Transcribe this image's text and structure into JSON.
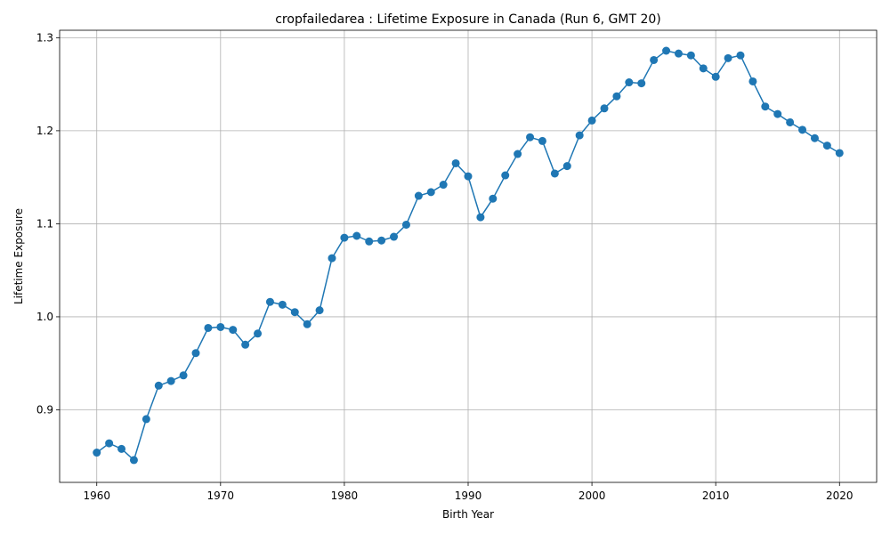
{
  "chart_data": {
    "type": "line",
    "title": "cropfailedarea : Lifetime Exposure in Canada (Run 6, GMT 20)",
    "xlabel": "Birth Year",
    "ylabel": "Lifetime Exposure",
    "xlim": [
      1957,
      2023
    ],
    "ylim": [
      0.822,
      1.308
    ],
    "xticks": [
      1960,
      1970,
      1980,
      1990,
      2000,
      2010,
      2020
    ],
    "yticks": [
      0.9,
      1.0,
      1.1,
      1.2,
      1.3
    ],
    "ytick_labels": [
      "0.9",
      "1.0",
      "1.1",
      "1.2",
      "1.3"
    ],
    "grid": true,
    "color": "#1f77b4",
    "marker": "circle",
    "x": [
      1960,
      1961,
      1962,
      1963,
      1964,
      1965,
      1966,
      1967,
      1968,
      1969,
      1970,
      1971,
      1972,
      1973,
      1974,
      1975,
      1976,
      1977,
      1978,
      1979,
      1980,
      1981,
      1982,
      1983,
      1984,
      1985,
      1986,
      1987,
      1988,
      1989,
      1990,
      1991,
      1992,
      1993,
      1994,
      1995,
      1996,
      1997,
      1998,
      1999,
      2000,
      2001,
      2002,
      2003,
      2004,
      2005,
      2006,
      2007,
      2008,
      2009,
      2010,
      2011,
      2012,
      2013,
      2014,
      2015,
      2016,
      2017,
      2018,
      2019,
      2020
    ],
    "y": [
      0.854,
      0.864,
      0.858,
      0.846,
      0.89,
      0.926,
      0.931,
      0.937,
      0.961,
      0.988,
      0.989,
      0.986,
      0.97,
      0.982,
      1.016,
      1.013,
      1.005,
      0.992,
      1.007,
      1.063,
      1.085,
      1.087,
      1.081,
      1.082,
      1.086,
      1.099,
      1.13,
      1.134,
      1.142,
      1.165,
      1.151,
      1.107,
      1.127,
      1.152,
      1.175,
      1.193,
      1.189,
      1.154,
      1.162,
      1.195,
      1.211,
      1.224,
      1.237,
      1.252,
      1.251,
      1.276,
      1.286,
      1.283,
      1.281,
      1.267,
      1.258,
      1.278,
      1.281,
      1.253,
      1.226,
      1.218,
      1.209,
      1.201,
      1.192,
      1.184,
      1.176
    ]
  }
}
